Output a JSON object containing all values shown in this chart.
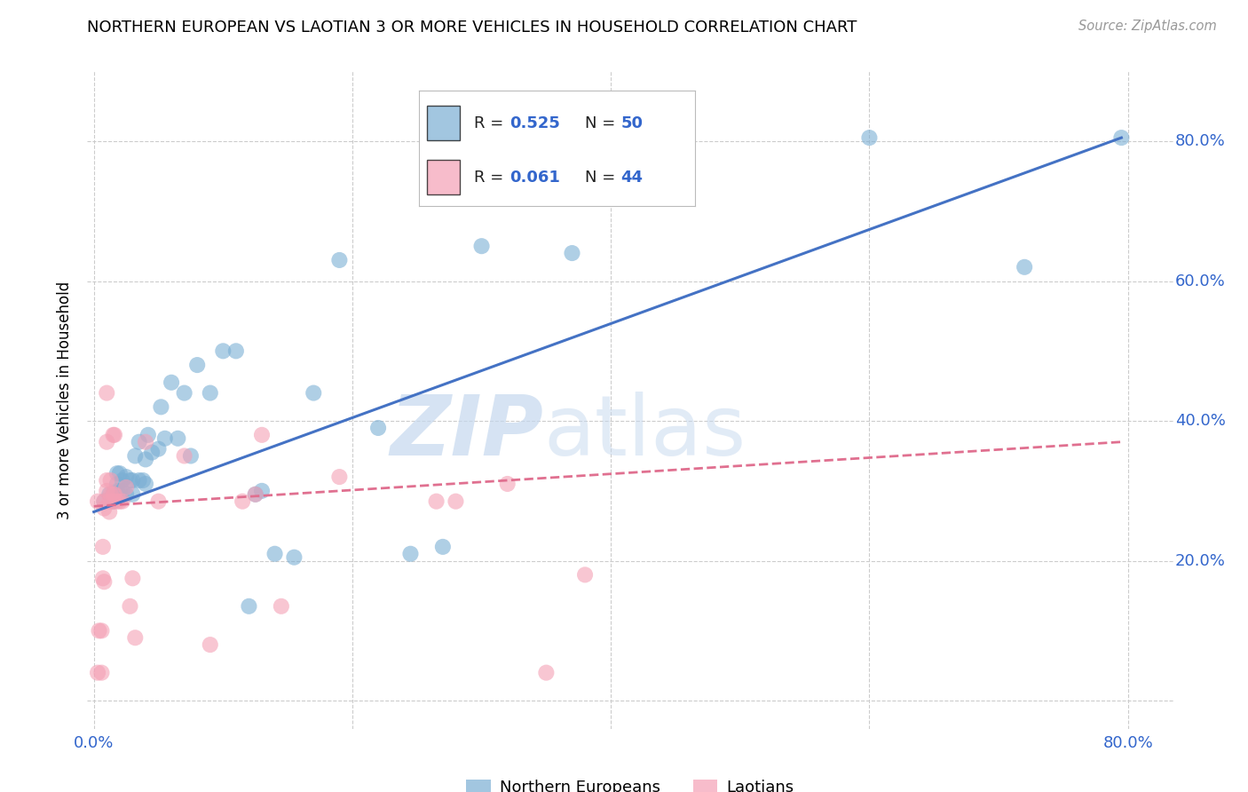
{
  "title": "NORTHERN EUROPEAN VS LAOTIAN 3 OR MORE VEHICLES IN HOUSEHOLD CORRELATION CHART",
  "source": "Source: ZipAtlas.com",
  "ylabel": "3 or more Vehicles in Household",
  "legend_r_ne": "0.525",
  "legend_n_ne": "50",
  "legend_r_la": "0.061",
  "legend_n_la": "44",
  "ne_color": "#7BAFD4",
  "la_color": "#F4A0B5",
  "ne_line_color": "#4472C4",
  "la_line_color": "#E07090",
  "watermark_zip": "ZIP",
  "watermark_atlas": "atlas",
  "blue_scatter_x": [
    0.008,
    0.012,
    0.015,
    0.015,
    0.018,
    0.018,
    0.018,
    0.02,
    0.02,
    0.022,
    0.022,
    0.025,
    0.025,
    0.028,
    0.03,
    0.03,
    0.032,
    0.035,
    0.035,
    0.038,
    0.04,
    0.04,
    0.042,
    0.045,
    0.05,
    0.052,
    0.055,
    0.06,
    0.065,
    0.07,
    0.075,
    0.08,
    0.09,
    0.1,
    0.11,
    0.12,
    0.125,
    0.13,
    0.14,
    0.155,
    0.17,
    0.19,
    0.22,
    0.245,
    0.27,
    0.3,
    0.37,
    0.6,
    0.72,
    0.795
  ],
  "blue_scatter_y": [
    0.285,
    0.295,
    0.285,
    0.295,
    0.3,
    0.31,
    0.325,
    0.3,
    0.325,
    0.3,
    0.315,
    0.295,
    0.32,
    0.315,
    0.295,
    0.315,
    0.35,
    0.315,
    0.37,
    0.315,
    0.31,
    0.345,
    0.38,
    0.355,
    0.36,
    0.42,
    0.375,
    0.455,
    0.375,
    0.44,
    0.35,
    0.48,
    0.44,
    0.5,
    0.5,
    0.135,
    0.295,
    0.3,
    0.21,
    0.205,
    0.44,
    0.63,
    0.39,
    0.21,
    0.22,
    0.65,
    0.64,
    0.805,
    0.62,
    0.805
  ],
  "pink_scatter_x": [
    0.003,
    0.003,
    0.004,
    0.006,
    0.006,
    0.007,
    0.007,
    0.008,
    0.008,
    0.008,
    0.01,
    0.01,
    0.01,
    0.01,
    0.012,
    0.012,
    0.013,
    0.013,
    0.015,
    0.015,
    0.015,
    0.016,
    0.016,
    0.018,
    0.02,
    0.022,
    0.025,
    0.028,
    0.03,
    0.032,
    0.04,
    0.05,
    0.07,
    0.09,
    0.115,
    0.125,
    0.13,
    0.145,
    0.19,
    0.265,
    0.28,
    0.32,
    0.35,
    0.38
  ],
  "pink_scatter_y": [
    0.04,
    0.285,
    0.1,
    0.04,
    0.1,
    0.175,
    0.22,
    0.17,
    0.275,
    0.285,
    0.3,
    0.315,
    0.37,
    0.44,
    0.27,
    0.285,
    0.295,
    0.315,
    0.285,
    0.295,
    0.38,
    0.295,
    0.38,
    0.285,
    0.285,
    0.285,
    0.305,
    0.135,
    0.175,
    0.09,
    0.37,
    0.285,
    0.35,
    0.08,
    0.285,
    0.295,
    0.38,
    0.135,
    0.32,
    0.285,
    0.285,
    0.31,
    0.04,
    0.18
  ],
  "ne_line_x": [
    0.0,
    0.795
  ],
  "ne_line_y": [
    0.27,
    0.805
  ],
  "la_line_x": [
    0.0,
    0.795
  ],
  "la_line_y": [
    0.278,
    0.37
  ],
  "xlim": [
    -0.005,
    0.835
  ],
  "ylim": [
    -0.04,
    0.9
  ],
  "xtick_show": [
    0.0,
    0.8
  ],
  "ytick_right": [
    0.2,
    0.4,
    0.6,
    0.8
  ],
  "grid_ticks": [
    0.0,
    0.2,
    0.4,
    0.6,
    0.8
  ]
}
